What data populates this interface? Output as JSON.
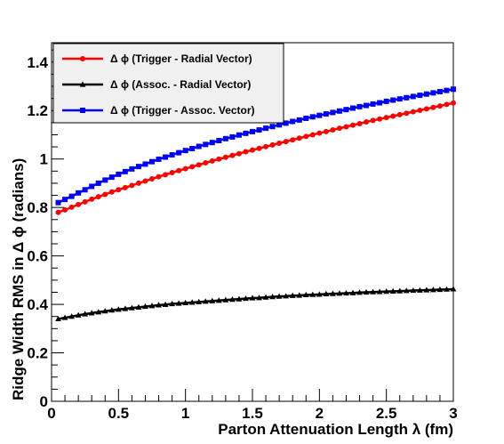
{
  "chart_data": {
    "type": "line",
    "xlabel": "Parton Attenuation Length λ (fm)",
    "ylabel": "Ridge Width RMS in Δ ϕ (radians)",
    "xlim": [
      0,
      3
    ],
    "ylim": [
      0,
      1.48
    ],
    "x_ticks": [
      "0",
      "0.5",
      "1",
      "1.5",
      "2",
      "2.5",
      "3"
    ],
    "y_ticks": [
      "0",
      "0.2",
      "0.4",
      "0.6",
      "0.8",
      "1",
      "1.2",
      "1.4"
    ],
    "grid": false,
    "legend_placement": "top-left",
    "series": [
      {
        "name": "Δ ϕ (Trigger - Radial Vector)",
        "color": "#ff0000",
        "marker": "circle",
        "x": [
          0.05,
          0.1,
          0.15,
          0.2,
          0.25,
          0.3,
          0.35,
          0.4,
          0.45,
          0.5,
          0.55,
          0.6,
          0.65,
          0.7,
          0.75,
          0.8,
          0.85,
          0.9,
          0.95,
          1.0,
          1.05,
          1.1,
          1.15,
          1.2,
          1.25,
          1.3,
          1.35,
          1.4,
          1.45,
          1.5,
          1.55,
          1.6,
          1.65,
          1.7,
          1.75,
          1.8,
          1.85,
          1.9,
          1.95,
          2.0,
          2.05,
          2.1,
          2.15,
          2.2,
          2.25,
          2.3,
          2.35,
          2.4,
          2.45,
          2.5,
          2.55,
          2.6,
          2.65,
          2.7,
          2.75,
          2.8,
          2.85,
          2.9,
          2.95,
          3.0
        ],
        "values": [
          0.78,
          0.79,
          0.801,
          0.812,
          0.823,
          0.834,
          0.844,
          0.854,
          0.864,
          0.873,
          0.882,
          0.891,
          0.9,
          0.909,
          0.918,
          0.927,
          0.935,
          0.944,
          0.952,
          0.96,
          0.968,
          0.976,
          0.984,
          0.992,
          1.0,
          1.007,
          1.015,
          1.022,
          1.03,
          1.037,
          1.044,
          1.051,
          1.058,
          1.065,
          1.072,
          1.079,
          1.086,
          1.093,
          1.1,
          1.107,
          1.113,
          1.12,
          1.127,
          1.133,
          1.14,
          1.146,
          1.153,
          1.159,
          1.165,
          1.171,
          1.177,
          1.183,
          1.189,
          1.195,
          1.201,
          1.207,
          1.213,
          1.219,
          1.225,
          1.231
        ]
      },
      {
        "name": "Δ ϕ (Assoc.  - Radial Vector)",
        "color": "#000000",
        "marker": "triangle",
        "x": [
          0.05,
          0.1,
          0.15,
          0.2,
          0.25,
          0.3,
          0.35,
          0.4,
          0.45,
          0.5,
          0.55,
          0.6,
          0.65,
          0.7,
          0.75,
          0.8,
          0.85,
          0.9,
          0.95,
          1.0,
          1.05,
          1.1,
          1.15,
          1.2,
          1.25,
          1.3,
          1.35,
          1.4,
          1.45,
          1.5,
          1.55,
          1.6,
          1.65,
          1.7,
          1.75,
          1.8,
          1.85,
          1.9,
          1.95,
          2.0,
          2.05,
          2.1,
          2.15,
          2.2,
          2.25,
          2.3,
          2.35,
          2.4,
          2.45,
          2.5,
          2.55,
          2.6,
          2.65,
          2.7,
          2.75,
          2.8,
          2.85,
          2.9,
          2.95,
          3.0
        ],
        "values": [
          0.34,
          0.345,
          0.35,
          0.355,
          0.36,
          0.364,
          0.368,
          0.372,
          0.376,
          0.379,
          0.382,
          0.385,
          0.388,
          0.391,
          0.394,
          0.397,
          0.399,
          0.402,
          0.404,
          0.406,
          0.408,
          0.41,
          0.412,
          0.414,
          0.416,
          0.418,
          0.42,
          0.422,
          0.424,
          0.426,
          0.427,
          0.429,
          0.431,
          0.433,
          0.434,
          0.436,
          0.437,
          0.439,
          0.44,
          0.441,
          0.443,
          0.444,
          0.445,
          0.446,
          0.447,
          0.449,
          0.45,
          0.451,
          0.452,
          0.453,
          0.454,
          0.455,
          0.456,
          0.457,
          0.458,
          0.459,
          0.46,
          0.461,
          0.462,
          0.463
        ]
      },
      {
        "name": "Δ ϕ (Trigger - Assoc. Vector)",
        "color": "#0000ff",
        "marker": "square",
        "x": [
          0.05,
          0.1,
          0.15,
          0.2,
          0.25,
          0.3,
          0.35,
          0.4,
          0.45,
          0.5,
          0.55,
          0.6,
          0.65,
          0.7,
          0.75,
          0.8,
          0.85,
          0.9,
          0.95,
          1.0,
          1.05,
          1.1,
          1.15,
          1.2,
          1.25,
          1.3,
          1.35,
          1.4,
          1.45,
          1.5,
          1.55,
          1.6,
          1.65,
          1.7,
          1.75,
          1.8,
          1.85,
          1.9,
          1.95,
          2.0,
          2.05,
          2.1,
          2.15,
          2.2,
          2.25,
          2.3,
          2.35,
          2.4,
          2.45,
          2.5,
          2.55,
          2.6,
          2.65,
          2.7,
          2.75,
          2.8,
          2.85,
          2.9,
          2.95,
          3.0
        ],
        "values": [
          0.82,
          0.833,
          0.846,
          0.86,
          0.873,
          0.887,
          0.9,
          0.913,
          0.925,
          0.937,
          0.948,
          0.959,
          0.969,
          0.979,
          0.989,
          0.999,
          1.008,
          1.017,
          1.026,
          1.035,
          1.043,
          1.052,
          1.06,
          1.068,
          1.076,
          1.084,
          1.091,
          1.099,
          1.106,
          1.113,
          1.12,
          1.127,
          1.134,
          1.141,
          1.148,
          1.155,
          1.161,
          1.168,
          1.174,
          1.18,
          1.186,
          1.192,
          1.198,
          1.204,
          1.21,
          1.216,
          1.221,
          1.227,
          1.232,
          1.238,
          1.243,
          1.248,
          1.253,
          1.258,
          1.263,
          1.268,
          1.273,
          1.278,
          1.283,
          1.288
        ]
      }
    ]
  }
}
